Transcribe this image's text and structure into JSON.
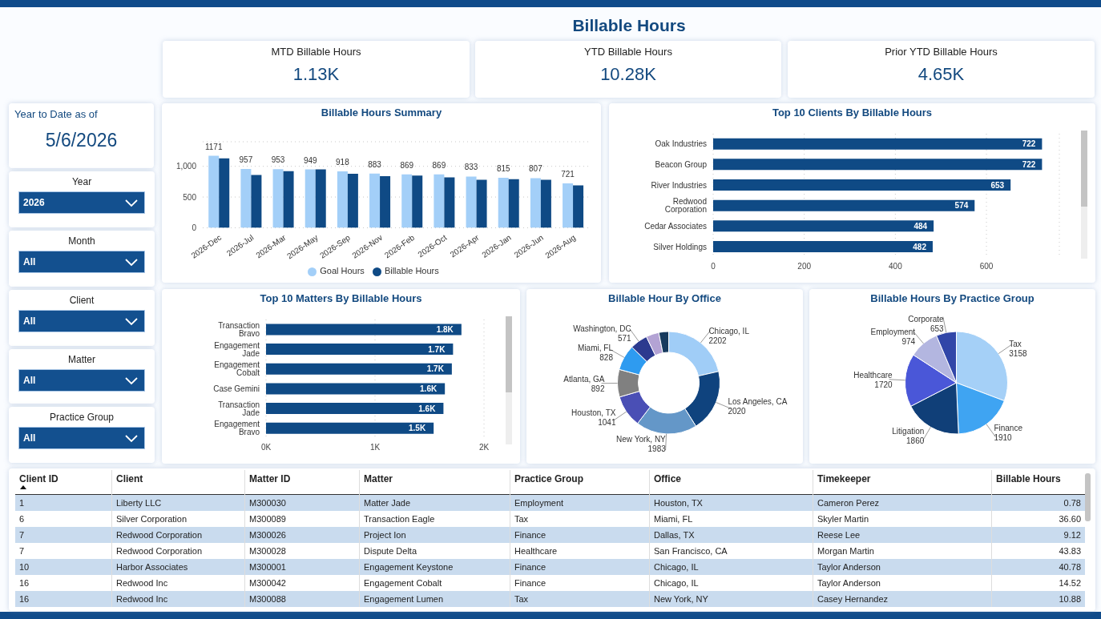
{
  "chart_data": [
    {
      "type": "other",
      "title": "Billable Hours"
    },
    {
      "type": "other",
      "title": "MTD Billable Hours",
      "annotations": [
        "1.13K"
      ]
    },
    {
      "type": "other",
      "title": "YTD Billable Hours",
      "annotations": [
        "10.28K"
      ]
    },
    {
      "type": "other",
      "title": "Prior YTD Billable Hours",
      "annotations": [
        "4.65K"
      ]
    },
    {
      "type": "other",
      "title": "Year to Date as of",
      "annotations": [
        "5/6/2026"
      ]
    },
    {
      "type": "bar",
      "title": "Billable Hours Summary",
      "categories": [
        "2026-Dec",
        "2026-Jul",
        "2026-Mar",
        "2026-May",
        "2026-Sep",
        "2026-Nov",
        "2026-Feb",
        "2026-Oct",
        "2026-Apr",
        "2026-Jan",
        "2026-Jun",
        "2026-Aug"
      ],
      "series": [
        {
          "name": "Goal Hours",
          "color": "#a3cff8",
          "values": [
            1171,
            957,
            953,
            949,
            918,
            883,
            869,
            869,
            833,
            815,
            807,
            721
          ],
          "value_labels": [
            "1171",
            "957",
            "953",
            "949",
            "918",
            "883",
            "869",
            "869",
            "833",
            "815",
            "807",
            "721"
          ]
        },
        {
          "name": "Billable Hours",
          "color": "#0f4a85",
          "values": [
            1130,
            860,
            920,
            950,
            880,
            840,
            850,
            820,
            780,
            790,
            780,
            690
          ]
        }
      ],
      "ylim": [
        0,
        1400
      ],
      "yticks": [
        0,
        500,
        {
          "value": 1000,
          "label": "1,000"
        }
      ],
      "grid": "y",
      "legend": "bottom"
    },
    {
      "type": "bar",
      "orientation": "horizontal",
      "title": "Top 10 Clients By Billable Hours",
      "categories": [
        "Oak Industries",
        "Beacon Group",
        "River Industries",
        "Redwood Corporation",
        "Cedar Associates",
        "Silver Holdings"
      ],
      "values": [
        722,
        722,
        653,
        574,
        484,
        482
      ],
      "color": "#0f4a85",
      "data_labels": true,
      "xlim": [
        0,
        760
      ],
      "xticks": [
        0,
        200,
        400,
        600
      ],
      "grid": "x"
    },
    {
      "type": "other",
      "title": "Year",
      "annotations": [
        "2026"
      ]
    },
    {
      "type": "other",
      "title": "Month",
      "annotations": [
        "All"
      ]
    },
    {
      "type": "other",
      "title": "Client",
      "annotations": [
        "All"
      ]
    },
    {
      "type": "other",
      "title": "Matter",
      "annotations": [
        "All"
      ]
    },
    {
      "type": "other",
      "title": "Practice Group",
      "annotations": [
        "All"
      ]
    },
    {
      "type": "bar",
      "orientation": "horizontal",
      "title": "Top 10 Matters By Billable Hours",
      "categories": [
        "Transaction Bravo",
        "Engagement Jade",
        "Engagement Cobalt",
        "Case Gemini",
        "Transaction Jade",
        "Engagement Bravo"
      ],
      "values": [
        1793,
        1716,
        1705,
        1641,
        1628,
        1538
      ],
      "value_labels": [
        "1.8K",
        "1.7K",
        "1.7K",
        "1.6K",
        "1.6K",
        "1.5K"
      ],
      "color": "#0f4a85",
      "xlim": [
        0,
        2000
      ],
      "xticks": [
        {
          "value": 0,
          "label": "0K"
        },
        {
          "value": 1000,
          "label": "1K"
        },
        {
          "value": 2000,
          "label": "2K"
        }
      ],
      "grid": "x"
    },
    {
      "type": "donut",
      "title": "Billable Hour By Office",
      "categories": [
        "Chicago, IL",
        "Los Angeles, CA",
        "New York, NY",
        "Houston, TX",
        "Atlanta, GA",
        "Miami, FL",
        "Washington, DC",
        null,
        null
      ],
      "values": [
        2202,
        2020,
        1983,
        1041,
        892,
        828,
        571,
        420,
        318
      ],
      "colors": [
        "#a0cdf7",
        "#0f437e",
        "#6497c8",
        "#4a4fb5",
        "#808080",
        "#2e9bf0",
        "#2c3a8f",
        "#b3a3d4",
        "#173a5e"
      ],
      "value_labels": [
        "2202",
        "2020",
        "1983",
        "1041",
        "892",
        "828",
        "571",
        null,
        null
      ]
    },
    {
      "type": "pie",
      "title": "Billable Hours By Practice Group",
      "categories": [
        "Tax",
        "Finance",
        "Litigation",
        "Healthcare",
        "Employment",
        "Corporate"
      ],
      "values": [
        3158,
        1910,
        1860,
        1720,
        974,
        653
      ],
      "colors": [
        "#a5d0f7",
        "#3fa4f2",
        "#103f78",
        "#4a57d8",
        "#b3b6e0",
        "#3146a8"
      ],
      "data_labels": true
    },
    {
      "type": "other",
      "categories": [
        "Client ID",
        "Client",
        "Matter ID",
        "Matter",
        "Practice Group",
        "Office",
        "Timekeeper",
        "Billable Hours"
      ],
      "annotations": [
        "1",
        "Liberty LLC",
        "M300030",
        "Matter Jade",
        "Employment",
        "Houston, TX",
        "Cameron Perez",
        "0.78",
        "6",
        "Silver Corporation",
        "M300089",
        "Transaction Eagle",
        "Tax",
        "Miami, FL",
        "Skyler Martin",
        "36.60",
        "7",
        "Redwood Corporation",
        "M300026",
        "Project Ion",
        "Finance",
        "Dallas, TX",
        "Reese Lee",
        "9.12",
        "7",
        "Redwood Corporation",
        "M300028",
        "Dispute Delta",
        "Healthcare",
        "San Francisco, CA",
        "Morgan Martin",
        "43.83",
        "10",
        "Harbor Associates",
        "M300001",
        "Engagement Keystone",
        "Finance",
        "Chicago, IL",
        "Taylor Anderson",
        "40.78",
        "16",
        "Redwood Inc",
        "M300042",
        "Engagement Cobalt",
        "Finance",
        "Chicago, IL",
        "Taylor Anderson",
        "14.52",
        "16",
        "Redwood Inc",
        "M300088",
        "Engagement Lumen",
        "Tax",
        "New York, NY",
        "Casey Hernandez",
        "10.88"
      ]
    }
  ]
}
